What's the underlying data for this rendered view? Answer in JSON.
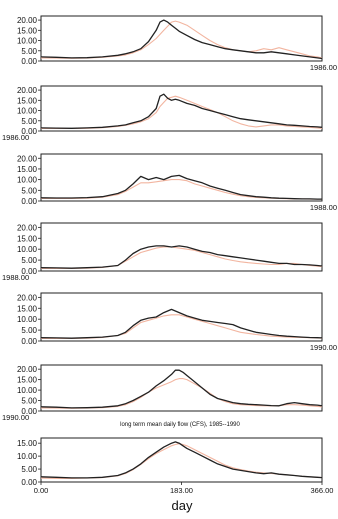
{
  "chart_data": [
    {
      "type": "line",
      "corner_label": "1986.00",
      "corner_pos": "bottom-right",
      "x": [
        0,
        20,
        40,
        60,
        80,
        100,
        110,
        120,
        130,
        140,
        150,
        155,
        160,
        165,
        170,
        175,
        180,
        190,
        200,
        210,
        220,
        230,
        240,
        250,
        260,
        270,
        280,
        290,
        300,
        310,
        320,
        330,
        340,
        350,
        360,
        366
      ],
      "series": [
        {
          "values": [
            2.0,
            1.8,
            1.5,
            1.6,
            2.0,
            2.8,
            3.5,
            4.5,
            6.0,
            9.5,
            15.0,
            19.0,
            20.0,
            19.0,
            17.5,
            16.0,
            14.5,
            12.5,
            10.5,
            9.0,
            8.0,
            7.0,
            6.0,
            5.5,
            5.0,
            4.5,
            4.0,
            4.0,
            4.5,
            4.0,
            3.5,
            3.0,
            2.5,
            2.0,
            1.5,
            1.2
          ],
          "color": "#222222"
        },
        {
          "values": [
            1.5,
            1.4,
            1.3,
            1.4,
            1.8,
            2.5,
            3.0,
            4.0,
            5.5,
            8.0,
            11.0,
            13.0,
            15.0,
            17.0,
            19.0,
            19.5,
            19.0,
            17.5,
            15.0,
            12.5,
            10.0,
            8.0,
            6.5,
            5.5,
            5.0,
            4.5,
            5.0,
            6.0,
            5.5,
            6.5,
            5.5,
            4.5,
            3.5,
            2.5,
            2.0,
            1.5
          ],
          "color": "#f2b5a0"
        }
      ],
      "ylim": [
        0,
        22
      ],
      "yticks": [
        "0.00",
        "5.00",
        "10.00",
        "15.00",
        "20.00"
      ]
    },
    {
      "type": "line",
      "corner_label": "1986.00",
      "corner_pos": "bottom-left",
      "x": [
        0,
        20,
        40,
        60,
        80,
        100,
        110,
        120,
        130,
        140,
        150,
        155,
        160,
        165,
        170,
        175,
        180,
        190,
        200,
        210,
        220,
        230,
        240,
        250,
        260,
        270,
        280,
        290,
        300,
        310,
        320,
        330,
        340,
        350,
        360,
        366
      ],
      "series": [
        {
          "values": [
            1.5,
            1.4,
            1.3,
            1.5,
            1.8,
            2.5,
            3.0,
            4.0,
            5.0,
            7.0,
            11.0,
            17.0,
            18.0,
            16.0,
            15.0,
            15.5,
            15.0,
            13.5,
            12.5,
            11.0,
            10.0,
            9.0,
            8.0,
            7.0,
            6.0,
            5.5,
            5.0,
            4.5,
            4.0,
            3.5,
            3.0,
            2.8,
            2.5,
            2.2,
            2.0,
            1.8
          ],
          "color": "#222222"
        },
        {
          "values": [
            1.2,
            1.2,
            1.2,
            1.3,
            1.6,
            2.2,
            2.8,
            3.5,
            4.5,
            6.0,
            9.0,
            12.0,
            14.0,
            16.0,
            16.5,
            17.0,
            16.5,
            15.0,
            13.5,
            12.0,
            10.5,
            9.0,
            7.0,
            5.0,
            3.5,
            2.5,
            2.0,
            2.5,
            3.0,
            3.0,
            2.5,
            2.2,
            2.0,
            1.8,
            1.5,
            1.3
          ],
          "color": "#f2b5a0"
        }
      ],
      "ylim": [
        0,
        22
      ],
      "yticks": [
        "0.00",
        "5.00",
        "10.00",
        "15.00",
        "20.00"
      ]
    },
    {
      "type": "line",
      "corner_label": "1988.00",
      "corner_pos": "bottom-right",
      "x": [
        0,
        20,
        40,
        60,
        80,
        100,
        110,
        120,
        130,
        140,
        150,
        160,
        170,
        180,
        190,
        200,
        210,
        220,
        230,
        240,
        250,
        260,
        270,
        280,
        290,
        300,
        310,
        320,
        330,
        340,
        350,
        360,
        366
      ],
      "series": [
        {
          "values": [
            1.5,
            1.4,
            1.4,
            1.6,
            2.0,
            3.5,
            5.0,
            8.0,
            11.5,
            10.0,
            11.0,
            10.0,
            11.5,
            12.0,
            10.5,
            9.5,
            8.5,
            7.0,
            6.0,
            5.0,
            4.0,
            3.0,
            2.5,
            2.0,
            1.8,
            1.5,
            1.3,
            1.2,
            1.1,
            1.0,
            1.0,
            0.9,
            0.9
          ],
          "color": "#222222"
        },
        {
          "values": [
            1.2,
            1.2,
            1.2,
            1.3,
            1.8,
            3.0,
            4.5,
            6.5,
            8.5,
            8.5,
            9.0,
            9.5,
            10.0,
            10.0,
            9.5,
            8.0,
            7.0,
            6.0,
            5.0,
            4.0,
            3.2,
            2.5,
            2.0,
            1.7,
            1.5,
            1.3,
            1.2,
            1.1,
            1.0,
            1.0,
            0.9,
            0.9,
            0.9
          ],
          "color": "#f2b5a0"
        }
      ],
      "ylim": [
        0,
        22
      ],
      "yticks": [
        "0.00",
        "5.00",
        "10.00",
        "15.00",
        "20.00"
      ]
    },
    {
      "type": "line",
      "corner_label": "1988.00",
      "corner_pos": "bottom-left",
      "x": [
        0,
        20,
        40,
        60,
        80,
        100,
        110,
        120,
        130,
        140,
        150,
        160,
        170,
        180,
        190,
        200,
        210,
        220,
        230,
        240,
        250,
        260,
        270,
        280,
        290,
        300,
        310,
        320,
        330,
        340,
        350,
        360,
        366
      ],
      "series": [
        {
          "values": [
            1.5,
            1.4,
            1.3,
            1.5,
            1.8,
            2.5,
            5.0,
            8.0,
            10.0,
            11.0,
            11.5,
            11.5,
            11.0,
            11.5,
            11.0,
            10.0,
            9.0,
            8.5,
            7.5,
            7.0,
            6.5,
            6.0,
            5.5,
            5.0,
            4.5,
            4.0,
            3.5,
            3.5,
            3.0,
            3.0,
            2.8,
            2.5,
            2.3
          ],
          "color": "#222222"
        },
        {
          "values": [
            1.2,
            1.2,
            1.2,
            1.3,
            1.6,
            2.5,
            4.5,
            6.5,
            8.5,
            9.5,
            10.5,
            11.0,
            11.0,
            10.5,
            10.0,
            9.5,
            8.5,
            7.5,
            6.5,
            5.5,
            4.8,
            4.2,
            3.8,
            3.5,
            3.2,
            3.0,
            3.0,
            3.5,
            3.5,
            3.0,
            2.5,
            2.2,
            2.0
          ],
          "color": "#f2b5a0"
        }
      ],
      "ylim": [
        0,
        22
      ],
      "yticks": [
        "0.00",
        "5.00",
        "10.00",
        "15.00",
        "20.00"
      ]
    },
    {
      "type": "line",
      "corner_label": "1990.00",
      "corner_pos": "bottom-right",
      "x": [
        0,
        20,
        40,
        60,
        80,
        100,
        110,
        120,
        130,
        140,
        150,
        160,
        170,
        180,
        190,
        200,
        210,
        220,
        230,
        240,
        250,
        260,
        270,
        280,
        290,
        300,
        310,
        320,
        330,
        340,
        350,
        360,
        366
      ],
      "series": [
        {
          "values": [
            1.5,
            1.4,
            1.3,
            1.5,
            1.8,
            2.5,
            4.0,
            7.0,
            9.5,
            10.5,
            11.0,
            13.0,
            14.5,
            13.0,
            11.5,
            10.5,
            9.5,
            9.0,
            8.5,
            8.0,
            7.5,
            6.0,
            5.0,
            4.0,
            3.5,
            3.0,
            2.5,
            2.2,
            2.0,
            1.8,
            1.6,
            1.5,
            1.4
          ],
          "color": "#222222"
        },
        {
          "values": [
            1.2,
            1.2,
            1.2,
            1.3,
            1.6,
            2.5,
            3.5,
            6.0,
            8.5,
            9.5,
            10.5,
            11.5,
            12.0,
            12.0,
            11.0,
            10.0,
            9.0,
            8.0,
            7.0,
            6.0,
            5.0,
            4.0,
            3.5,
            3.0,
            2.6,
            2.2,
            2.0,
            1.8,
            1.7,
            1.6,
            1.5,
            1.4,
            1.3
          ],
          "color": "#f2b5a0"
        }
      ],
      "ylim": [
        0,
        22
      ],
      "yticks": [
        "0.00",
        "5.00",
        "10.00",
        "15.00",
        "20.00"
      ]
    },
    {
      "type": "line",
      "corner_label": "1990.00",
      "corner_pos": "bottom-left",
      "x": [
        0,
        20,
        40,
        60,
        80,
        100,
        110,
        120,
        130,
        140,
        150,
        160,
        170,
        175,
        180,
        185,
        190,
        200,
        210,
        220,
        230,
        240,
        250,
        260,
        270,
        280,
        290,
        300,
        310,
        320,
        330,
        340,
        350,
        360,
        366
      ],
      "series": [
        {
          "values": [
            2.0,
            1.8,
            1.5,
            1.6,
            1.8,
            2.5,
            3.5,
            5.0,
            7.0,
            9.0,
            12.0,
            14.5,
            17.5,
            19.5,
            19.5,
            18.5,
            17.0,
            14.0,
            11.0,
            8.0,
            6.0,
            5.0,
            4.0,
            3.5,
            3.2,
            3.0,
            2.8,
            2.6,
            2.5,
            3.5,
            4.0,
            3.5,
            3.0,
            2.8,
            2.5
          ],
          "color": "#222222"
        },
        {
          "values": [
            1.5,
            1.4,
            1.3,
            1.4,
            1.6,
            2.2,
            3.0,
            4.5,
            6.5,
            9.0,
            11.0,
            12.5,
            14.0,
            15.0,
            15.5,
            15.5,
            15.0,
            13.0,
            11.0,
            8.5,
            6.0,
            4.5,
            3.5,
            3.0,
            2.8,
            2.6,
            2.5,
            2.5,
            2.5,
            3.0,
            3.0,
            2.8,
            2.5,
            2.2,
            2.0
          ],
          "color": "#f2b5a0"
        }
      ],
      "ylim": [
        0,
        22
      ],
      "yticks": [
        "0.00",
        "5.00",
        "10.00",
        "15.00",
        "20.00"
      ],
      "note": "long term mean daily flow (CFS), 1985--1990"
    },
    {
      "type": "line",
      "corner_label": "",
      "corner_pos": "",
      "x": [
        0,
        20,
        40,
        60,
        80,
        100,
        110,
        120,
        130,
        140,
        150,
        160,
        170,
        175,
        180,
        185,
        190,
        200,
        210,
        220,
        230,
        240,
        250,
        260,
        270,
        280,
        290,
        300,
        310,
        320,
        330,
        340,
        350,
        360,
        366
      ],
      "series": [
        {
          "values": [
            2.0,
            1.8,
            1.6,
            1.6,
            1.8,
            2.5,
            3.5,
            5.0,
            7.0,
            9.5,
            11.5,
            13.5,
            15.0,
            15.5,
            15.0,
            14.0,
            13.0,
            11.5,
            10.0,
            8.5,
            7.0,
            6.0,
            5.0,
            4.5,
            4.0,
            3.5,
            3.2,
            3.5,
            3.0,
            2.8,
            2.5,
            2.2,
            2.0,
            1.8,
            1.7
          ],
          "color": "#222222"
        },
        {
          "values": [
            1.5,
            1.4,
            1.4,
            1.5,
            1.7,
            2.4,
            3.3,
            4.8,
            6.8,
            9.0,
            11.0,
            12.5,
            14.0,
            14.5,
            14.8,
            14.5,
            14.0,
            12.5,
            11.0,
            9.5,
            8.0,
            6.5,
            5.5,
            4.8,
            4.2,
            3.8,
            3.5,
            3.3,
            3.0,
            2.8,
            2.5,
            2.2,
            2.0,
            1.8,
            1.7
          ],
          "color": "#f2b5a0"
        }
      ],
      "ylim": [
        0,
        17
      ],
      "yticks": [
        "0.00",
        "5.00",
        "10.00",
        "15.00"
      ],
      "xticks": [
        "0.00",
        "183.00",
        "366.00"
      ],
      "xlabel": "day"
    }
  ]
}
